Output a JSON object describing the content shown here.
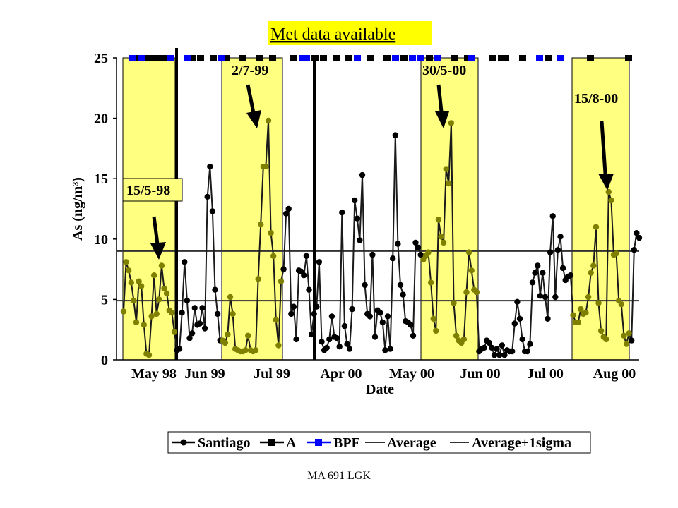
{
  "banner_text": "Met data available",
  "footer_text": "MA 691 LGK",
  "colors": {
    "highlight": "#ffff80",
    "santiago_line": "#1a1a1a",
    "santiago_marker": "#000000",
    "santiago_marker_on_highlight": "#808000",
    "met_a": "#000000",
    "met_bpf": "#0000ff",
    "reference_line": "#333333"
  },
  "chart_data": {
    "type": "line",
    "xlabel": "Date",
    "ylabel": "As (ng/m³)",
    "ylim": [
      0,
      25
    ],
    "yticks": [
      0,
      5,
      10,
      15,
      20,
      25
    ],
    "x_tick_labels": [
      "May 98",
      "Jun 99",
      "Jul 99",
      "Apr 00",
      "May 00",
      "Jun 00",
      "Jul 00",
      "Aug 00"
    ],
    "legend": {
      "position": "bottom",
      "entries": [
        "Santiago",
        "A",
        "BPF",
        "Average",
        "Average+1sigma"
      ]
    },
    "reference_lines": [
      {
        "name": "Average",
        "value": 4.9
      },
      {
        "name": "Average+1sigma",
        "value": 9.0
      }
    ],
    "annotations": [
      {
        "label": "15/5-98"
      },
      {
        "label": "2/7-99"
      },
      {
        "label": "30/5-00"
      },
      {
        "label": "15/8-00"
      }
    ],
    "period_breaks": [
      "Jun 99",
      "Apr 00"
    ],
    "series": [
      {
        "name": "Santiago",
        "values": [
          4.0,
          8.1,
          7.4,
          6.4,
          4.9,
          3.1,
          6.5,
          6.1,
          2.9,
          0.5,
          0.4,
          3.6,
          7.0,
          3.8,
          5.0,
          7.8,
          5.9,
          5.5,
          4.1,
          3.9,
          2.3,
          0.8,
          0.9,
          3.9,
          8.1,
          4.9,
          1.8,
          2.2,
          4.3,
          2.9,
          3.0,
          4.3,
          2.6,
          13.5,
          16.0,
          12.3,
          5.8,
          3.8,
          1.6,
          1.6,
          1.4,
          2.1,
          5.2,
          3.8,
          0.9,
          0.8,
          0.7,
          0.7,
          0.8,
          2.0,
          0.8,
          0.7,
          0.8,
          6.7,
          11.2,
          16.0,
          16.0,
          19.8,
          10.5,
          8.6,
          3.3,
          1.2,
          6.5,
          7.5,
          12.1,
          12.5,
          3.8,
          4.4,
          1.7,
          7.4,
          7.3,
          7.0,
          8.6,
          5.8,
          2.1,
          3.8,
          4.4,
          8.1,
          1.5,
          0.8,
          1.0,
          1.7,
          3.6,
          1.9,
          1.8,
          1.1,
          12.2,
          2.8,
          1.3,
          0.9,
          4.2,
          13.2,
          11.7,
          9.9,
          15.3,
          6.2,
          3.8,
          3.6,
          8.7,
          1.9,
          4.1,
          3.9,
          3.1,
          0.8,
          3.6,
          0.9,
          8.4,
          18.6,
          9.6,
          6.2,
          5.4,
          3.2,
          3.1,
          2.9,
          2.0,
          9.7,
          9.3,
          8.7,
          8.3,
          8.6,
          8.9,
          6.4,
          3.4,
          2.4,
          11.6,
          10.2,
          9.7,
          15.8,
          14.6,
          19.6,
          4.7,
          2.0,
          1.6,
          1.4,
          1.7,
          5.6,
          8.9,
          7.4,
          5.8,
          5.6,
          0.7,
          0.9,
          1.0,
          1.6,
          1.4,
          1.0,
          0.4,
          0.9,
          0.4,
          1.2,
          0.4,
          0.8,
          0.7,
          0.7,
          3.0,
          4.8,
          3.4,
          1.7,
          0.7,
          0.7,
          1.3,
          6.4,
          7.2,
          7.8,
          5.3,
          7.2,
          5.2,
          3.4,
          8.9,
          11.9,
          5.2,
          9.1,
          10.2,
          7.6,
          6.6,
          6.9,
          7.0,
          3.7,
          3.1,
          3.1,
          4.2,
          3.8,
          3.9,
          5.2,
          7.2,
          7.8,
          11.0,
          4.7,
          2.4,
          1.9,
          1.7,
          13.9,
          13.2,
          8.7,
          8.8,
          4.9,
          4.6,
          2.0,
          1.3,
          2.2,
          1.6,
          9.1,
          10.5,
          10.1
        ]
      }
    ],
    "met_data_available": {
      "A": [
        1,
        3,
        4,
        5,
        6,
        7,
        8,
        14,
        16,
        19,
        22,
        26,
        30,
        33,
        38,
        43,
        45,
        48,
        51,
        56,
        60,
        64,
        70,
        76,
        79,
        85,
        87,
        88,
        92,
        98,
        108,
        117
      ],
      "BPF": [
        0,
        2,
        9,
        13,
        21,
        40,
        41,
        53,
        62,
        66,
        68,
        72,
        80,
        96,
        101
      ]
    }
  }
}
